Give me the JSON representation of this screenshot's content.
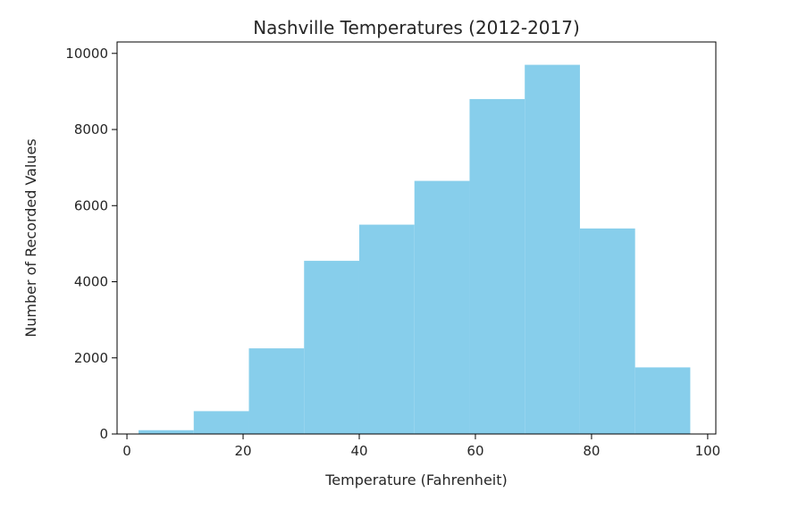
{
  "chart_data": {
    "type": "bar",
    "title": "Nashville Temperatures (2012-2017)",
    "xlabel": "Temperature (Fahrenheit)",
    "ylabel": "Number of Recorded Values",
    "xlim": [
      -1.7,
      101.4
    ],
    "ylim": [
      0,
      10300
    ],
    "xticks": [
      0,
      20,
      40,
      60,
      80,
      100
    ],
    "yticks": [
      0,
      2000,
      4000,
      6000,
      8000,
      10000
    ],
    "bin_edges": [
      2,
      11.5,
      21,
      30.5,
      40,
      49.5,
      59,
      68.5,
      78,
      87.5,
      97
    ],
    "values": [
      100,
      600,
      2250,
      4550,
      5500,
      6650,
      8800,
      9700,
      5400,
      1750
    ],
    "bar_color": "#87ceeb",
    "grid": false,
    "legend": "none"
  }
}
